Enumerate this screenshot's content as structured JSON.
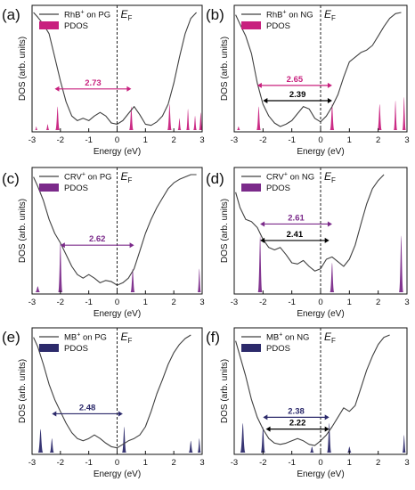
{
  "colors": {
    "pink": "#c8207e",
    "purple": "#7b2a8a",
    "navy": "#2c2a6b",
    "line": "#404040"
  },
  "chart_data": [
    {
      "type": "area",
      "panel": "(a)",
      "legend_line": "RhB",
      "legend_sup": "+",
      "legend_tail": " on PG",
      "legend_pdos": "PDOS",
      "fermi": "E",
      "fermi_sub": "F",
      "xlabel": "Energy (eV)",
      "ylabel": "DOS (arb. units)",
      "xlim": [
        -3,
        3
      ],
      "xticks": [
        "-3",
        "-2",
        "-1",
        "0",
        "1",
        "2",
        "3"
      ],
      "pdos_color": "pink",
      "dos": [
        [
          -2.95,
          1.0
        ],
        [
          -2.8,
          0.96
        ],
        [
          -2.6,
          0.9
        ],
        [
          -2.4,
          0.82
        ],
        [
          -2.2,
          0.62
        ],
        [
          -2.0,
          0.42
        ],
        [
          -1.8,
          0.24
        ],
        [
          -1.6,
          0.12
        ],
        [
          -1.4,
          0.08
        ],
        [
          -1.2,
          0.1
        ],
        [
          -1.0,
          0.08
        ],
        [
          -0.8,
          0.12
        ],
        [
          -0.6,
          0.15
        ],
        [
          -0.4,
          0.12
        ],
        [
          -0.2,
          0.06
        ],
        [
          0.0,
          0.05
        ],
        [
          0.2,
          0.08
        ],
        [
          0.4,
          0.14
        ],
        [
          0.6,
          0.2
        ],
        [
          0.8,
          0.13
        ],
        [
          1.0,
          0.05
        ],
        [
          1.2,
          0.04
        ],
        [
          1.4,
          0.07
        ],
        [
          1.6,
          0.12
        ],
        [
          1.8,
          0.22
        ],
        [
          2.0,
          0.4
        ],
        [
          2.2,
          0.62
        ],
        [
          2.4,
          0.82
        ],
        [
          2.6,
          0.95
        ],
        [
          2.8,
          1.0
        ]
      ],
      "pdos_peaks": [
        [
          -2.85,
          0.03,
          0.03
        ],
        [
          -2.45,
          0.05,
          0.04
        ],
        [
          -2.1,
          0.2,
          0.05
        ],
        [
          0.5,
          0.2,
          0.05
        ],
        [
          1.85,
          0.22,
          0.05
        ],
        [
          2.2,
          0.1,
          0.04
        ],
        [
          2.5,
          0.18,
          0.04
        ],
        [
          2.75,
          0.12,
          0.04
        ],
        [
          2.95,
          0.15,
          0.04
        ]
      ],
      "gaps": [
        {
          "label": "2.73",
          "from": -2.2,
          "to": 0.5,
          "y": 0.35,
          "color": "pink"
        }
      ]
    },
    {
      "type": "area",
      "panel": "(b)",
      "legend_line": "RhB",
      "legend_sup": "+",
      "legend_tail": " on NG",
      "legend_pdos": "PDOS",
      "fermi": "E",
      "fermi_sub": "F",
      "xlabel": "Energy (eV)",
      "ylabel": "DOS (arb. units)",
      "xlim": [
        -3,
        3
      ],
      "xticks": [
        "-3",
        "-2",
        "-1",
        "0",
        "1",
        "2",
        "3"
      ],
      "pdos_color": "pink",
      "dos": [
        [
          -2.95,
          0.98
        ],
        [
          -2.8,
          0.9
        ],
        [
          -2.6,
          0.8
        ],
        [
          -2.4,
          0.65
        ],
        [
          -2.2,
          0.4
        ],
        [
          -2.0,
          0.22
        ],
        [
          -1.8,
          0.12
        ],
        [
          -1.6,
          0.06
        ],
        [
          -1.4,
          0.03
        ],
        [
          -1.2,
          0.05
        ],
        [
          -1.0,
          0.08
        ],
        [
          -0.8,
          0.14
        ],
        [
          -0.6,
          0.2
        ],
        [
          -0.4,
          0.18
        ],
        [
          -0.2,
          0.1
        ],
        [
          0.0,
          0.07
        ],
        [
          0.2,
          0.12
        ],
        [
          0.4,
          0.2
        ],
        [
          0.6,
          0.3
        ],
        [
          0.8,
          0.45
        ],
        [
          1.0,
          0.58
        ],
        [
          1.2,
          0.62
        ],
        [
          1.4,
          0.66
        ],
        [
          1.6,
          0.68
        ],
        [
          1.8,
          0.72
        ],
        [
          2.0,
          0.8
        ],
        [
          2.2,
          0.88
        ],
        [
          2.4,
          0.95
        ],
        [
          2.6,
          0.99
        ],
        [
          2.8,
          1.0
        ]
      ],
      "pdos_peaks": [
        [
          -2.85,
          0.03,
          0.04
        ],
        [
          -2.15,
          0.2,
          0.05
        ],
        [
          0.4,
          0.22,
          0.05
        ],
        [
          2.05,
          0.22,
          0.05
        ],
        [
          2.6,
          0.25,
          0.04
        ],
        [
          2.9,
          0.28,
          0.04
        ]
      ],
      "gaps": [
        {
          "label": "2.65",
          "from": -2.2,
          "to": 0.4,
          "y": 0.38,
          "color": "pink"
        },
        {
          "label": "2.39",
          "from": -2.0,
          "to": 0.4,
          "y": 0.25,
          "color": "black"
        }
      ]
    },
    {
      "type": "area",
      "panel": "(c)",
      "legend_line": "CRV",
      "legend_sup": "+",
      "legend_tail": " on PG",
      "legend_pdos": "PDOS",
      "fermi": "E",
      "fermi_sub": "F",
      "xlabel": "Energy (eV)",
      "ylabel": "DOS (arb. units)",
      "xlim": [
        -3,
        3
      ],
      "xticks": [
        "-3",
        "-2",
        "-1",
        "0",
        "1",
        "2",
        "3"
      ],
      "pdos_color": "purple",
      "dos": [
        [
          -2.95,
          0.98
        ],
        [
          -2.8,
          0.9
        ],
        [
          -2.6,
          0.78
        ],
        [
          -2.4,
          0.62
        ],
        [
          -2.2,
          0.5
        ],
        [
          -2.0,
          0.42
        ],
        [
          -1.8,
          0.32
        ],
        [
          -1.6,
          0.22
        ],
        [
          -1.4,
          0.15
        ],
        [
          -1.2,
          0.12
        ],
        [
          -1.0,
          0.15
        ],
        [
          -0.8,
          0.12
        ],
        [
          -0.6,
          0.08
        ],
        [
          -0.4,
          0.1
        ],
        [
          -0.2,
          0.09
        ],
        [
          0.0,
          0.06
        ],
        [
          0.2,
          0.08
        ],
        [
          0.4,
          0.12
        ],
        [
          0.6,
          0.2
        ],
        [
          0.8,
          0.35
        ],
        [
          1.0,
          0.5
        ],
        [
          1.2,
          0.62
        ],
        [
          1.4,
          0.72
        ],
        [
          1.6,
          0.8
        ],
        [
          1.8,
          0.88
        ],
        [
          2.0,
          0.93
        ],
        [
          2.2,
          0.96
        ],
        [
          2.4,
          0.98
        ],
        [
          2.6,
          1.0
        ],
        [
          2.8,
          1.0
        ]
      ],
      "pdos_peaks": [
        [
          -2.8,
          0.05,
          0.06
        ],
        [
          -2.0,
          0.42,
          0.05
        ],
        [
          0.55,
          0.2,
          0.05
        ],
        [
          2.9,
          0.2,
          0.04
        ]
      ],
      "gaps": [
        {
          "label": "2.62",
          "from": -2.0,
          "to": 0.6,
          "y": 0.4,
          "color": "purple"
        }
      ]
    },
    {
      "type": "area",
      "panel": "(d)",
      "legend_line": "CRV",
      "legend_sup": "+",
      "legend_tail": " on NG",
      "legend_pdos": "PDOS",
      "fermi": "E",
      "fermi_sub": "F",
      "xlabel": "Energy (eV)",
      "ylabel": "DOS (arb. units)",
      "xlim": [
        -3,
        3
      ],
      "xticks": [
        "-3",
        "-2",
        "-1",
        "0",
        "1",
        "2",
        "3"
      ],
      "pdos_color": "purple",
      "dos": [
        [
          -2.95,
          0.85
        ],
        [
          -2.8,
          0.72
        ],
        [
          -2.6,
          0.62
        ],
        [
          -2.4,
          0.6
        ],
        [
          -2.2,
          0.55
        ],
        [
          -2.0,
          0.45
        ],
        [
          -1.8,
          0.38
        ],
        [
          -1.6,
          0.36
        ],
        [
          -1.4,
          0.38
        ],
        [
          -1.2,
          0.32
        ],
        [
          -1.0,
          0.25
        ],
        [
          -0.8,
          0.24
        ],
        [
          -0.6,
          0.27
        ],
        [
          -0.4,
          0.22
        ],
        [
          -0.2,
          0.18
        ],
        [
          0.0,
          0.2
        ],
        [
          0.2,
          0.28
        ],
        [
          0.4,
          0.3
        ],
        [
          0.6,
          0.26
        ],
        [
          0.8,
          0.22
        ],
        [
          1.0,
          0.28
        ],
        [
          1.2,
          0.4
        ],
        [
          1.4,
          0.58
        ],
        [
          1.6,
          0.75
        ],
        [
          1.8,
          0.88
        ],
        [
          2.0,
          0.95
        ],
        [
          2.2,
          1.0
        ]
      ],
      "pdos_peaks": [
        [
          -2.1,
          0.48,
          0.05
        ],
        [
          0.4,
          0.25,
          0.05
        ],
        [
          2.8,
          0.48,
          0.05
        ]
      ],
      "gaps": [
        {
          "label": "2.61",
          "from": -2.1,
          "to": 0.4,
          "y": 0.58,
          "color": "purple"
        },
        {
          "label": "2.41",
          "from": -2.1,
          "to": 0.3,
          "y": 0.44,
          "color": "black"
        }
      ]
    },
    {
      "type": "area",
      "panel": "(e)",
      "legend_line": "MB",
      "legend_sup": "+",
      "legend_tail": " on PG",
      "legend_pdos": "PDOS",
      "fermi": "E",
      "fermi_sub": "F",
      "xlabel": "Energy (eV)",
      "ylabel": "DOS (arb. units)",
      "xlim": [
        -3,
        3
      ],
      "xticks": [
        "-3",
        "-2",
        "-1",
        "0",
        "1",
        "2",
        "3"
      ],
      "pdos_color": "navy",
      "dos": [
        [
          -2.95,
          0.98
        ],
        [
          -2.8,
          0.9
        ],
        [
          -2.6,
          0.75
        ],
        [
          -2.4,
          0.58
        ],
        [
          -2.2,
          0.45
        ],
        [
          -2.0,
          0.35
        ],
        [
          -1.8,
          0.25
        ],
        [
          -1.6,
          0.17
        ],
        [
          -1.4,
          0.12
        ],
        [
          -1.2,
          0.1
        ],
        [
          -1.0,
          0.12
        ],
        [
          -0.8,
          0.15
        ],
        [
          -0.6,
          0.12
        ],
        [
          -0.4,
          0.08
        ],
        [
          -0.2,
          0.05
        ],
        [
          0.0,
          0.04
        ],
        [
          0.2,
          0.07
        ],
        [
          0.4,
          0.1
        ],
        [
          0.6,
          0.12
        ],
        [
          0.8,
          0.15
        ],
        [
          1.0,
          0.22
        ],
        [
          1.2,
          0.35
        ],
        [
          1.4,
          0.5
        ],
        [
          1.6,
          0.62
        ],
        [
          1.8,
          0.75
        ],
        [
          2.0,
          0.85
        ],
        [
          2.2,
          0.92
        ],
        [
          2.4,
          0.97
        ],
        [
          2.6,
          1.0
        ]
      ],
      "pdos_peaks": [
        [
          -2.7,
          0.2,
          0.06
        ],
        [
          -2.3,
          0.12,
          0.05
        ],
        [
          0.25,
          0.22,
          0.05
        ],
        [
          2.6,
          0.1,
          0.05
        ],
        [
          2.9,
          0.12,
          0.04
        ]
      ],
      "gaps": [
        {
          "label": "2.48",
          "from": -2.3,
          "to": 0.2,
          "y": 0.33,
          "color": "navy"
        }
      ]
    },
    {
      "type": "area",
      "panel": "(f)",
      "legend_line": "MB",
      "legend_sup": "+",
      "legend_tail": " on NG",
      "legend_pdos": "PDOS",
      "fermi": "E",
      "fermi_sub": "F",
      "xlabel": "Energy (eV)",
      "ylabel": "DOS (arb. units)",
      "xlim": [
        -3,
        3
      ],
      "xticks": [
        "-3",
        "-2",
        "-1",
        "0",
        "1",
        "2",
        "3"
      ],
      "pdos_color": "navy",
      "dos": [
        [
          -2.95,
          0.95
        ],
        [
          -2.8,
          0.82
        ],
        [
          -2.6,
          0.65
        ],
        [
          -2.4,
          0.45
        ],
        [
          -2.2,
          0.3
        ],
        [
          -2.0,
          0.2
        ],
        [
          -1.8,
          0.12
        ],
        [
          -1.6,
          0.08
        ],
        [
          -1.4,
          0.07
        ],
        [
          -1.2,
          0.08
        ],
        [
          -1.0,
          0.1
        ],
        [
          -0.8,
          0.12
        ],
        [
          -0.6,
          0.1
        ],
        [
          -0.4,
          0.07
        ],
        [
          -0.2,
          0.06
        ],
        [
          0.0,
          0.1
        ],
        [
          0.2,
          0.15
        ],
        [
          0.4,
          0.22
        ],
        [
          0.6,
          0.3
        ],
        [
          0.8,
          0.38
        ],
        [
          1.0,
          0.35
        ],
        [
          1.2,
          0.4
        ],
        [
          1.4,
          0.55
        ],
        [
          1.6,
          0.7
        ],
        [
          1.8,
          0.82
        ],
        [
          2.0,
          0.92
        ],
        [
          2.2,
          0.98
        ],
        [
          2.4,
          1.0
        ]
      ],
      "pdos_peaks": [
        [
          -2.7,
          0.25,
          0.06
        ],
        [
          -2.0,
          0.22,
          0.05
        ],
        [
          -0.3,
          0.05,
          0.05
        ],
        [
          0.3,
          0.25,
          0.05
        ],
        [
          1.0,
          0.05,
          0.05
        ],
        [
          2.9,
          0.15,
          0.04
        ]
      ],
      "gaps": [
        {
          "label": "2.38",
          "from": -2.0,
          "to": 0.3,
          "y": 0.3,
          "color": "navy"
        },
        {
          "label": "2.22",
          "from": -1.9,
          "to": 0.3,
          "y": 0.2,
          "color": "black"
        }
      ]
    }
  ]
}
